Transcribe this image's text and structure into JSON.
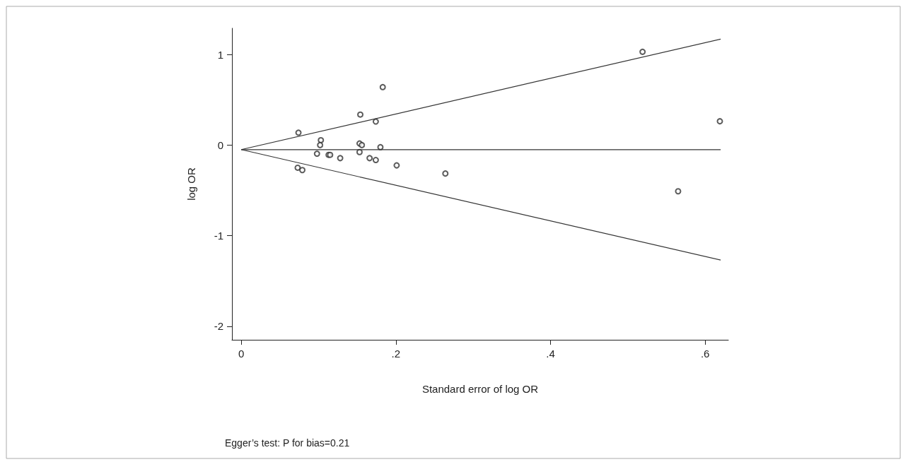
{
  "chart_data": {
    "type": "scatter",
    "xlabel": "Standard error of log OR",
    "ylabel": "log OR",
    "annotations": [
      "Egger’s test: P for bias=0.21"
    ],
    "xlim": [
      -0.012,
      0.63
    ],
    "ylim": [
      -2.15,
      1.29
    ],
    "xticks": [
      {
        "value": 0,
        "label": "0"
      },
      {
        "value": 0.2,
        "label": ".2"
      },
      {
        "value": 0.4,
        "label": ".4"
      },
      {
        "value": 0.6,
        "label": ".6"
      }
    ],
    "yticks": [
      -2,
      -1,
      0,
      1
    ],
    "grid": false,
    "marker": "circle",
    "series": [
      {
        "color": "#333333",
        "x": [
          0.074,
          0.103,
          0.102,
          0.098,
          0.113,
          0.115,
          0.128,
          0.154,
          0.153,
          0.156,
          0.153,
          0.174,
          0.166,
          0.174,
          0.18,
          0.183,
          0.201,
          0.264,
          0.073,
          0.079,
          0.519,
          0.619,
          0.565
        ],
        "values": [
          0.137,
          0.054,
          0.0,
          -0.095,
          -0.108,
          -0.108,
          -0.144,
          0.337,
          0.018,
          0.0,
          -0.077,
          0.26,
          -0.144,
          -0.165,
          -0.023,
          0.64,
          -0.224,
          -0.314,
          -0.25,
          -0.276,
          1.03,
          0.263,
          -0.51
        ]
      },
      {
        "type": "line",
        "color": "#333333",
        "marker": "none",
        "line_style": "solid",
        "x": [
          0,
          0.62
        ],
        "values": [
          -0.05,
          -0.05
        ]
      },
      {
        "type": "line",
        "color": "#333333",
        "marker": "none",
        "line_style": "solid",
        "x": [
          0,
          0.62
        ],
        "values": [
          -0.05,
          1.17
        ]
      },
      {
        "type": "line",
        "color": "#333333",
        "marker": "none",
        "line_style": "solid",
        "x": [
          0,
          0.62
        ],
        "values": [
          -0.05,
          -1.27
        ]
      }
    ]
  }
}
